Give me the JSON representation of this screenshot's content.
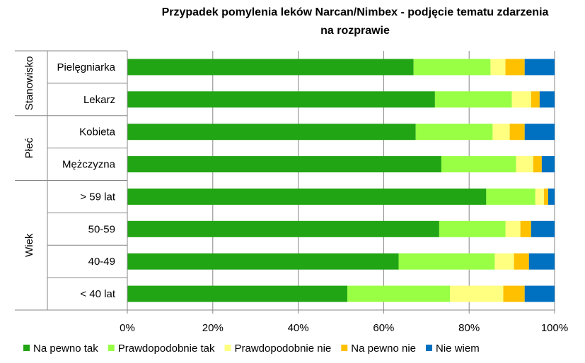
{
  "chart_data": {
    "type": "bar",
    "orientation": "horizontal",
    "stacked": "percent",
    "title_lines": [
      "Przypadek pomylenia leków  Narcan/Nimbex - podjęcie tematu  zdarzenia",
      "na rozprawie"
    ],
    "groups": [
      {
        "name": "Stanowisko",
        "categories": [
          "Pielęgniarka",
          "Lekarz"
        ]
      },
      {
        "name": "Płeć",
        "categories": [
          "Kobieta",
          "Mężczyzna"
        ]
      },
      {
        "name": "Wiek",
        "categories": [
          "> 59 lat",
          "50-59",
          "40-49",
          "< 40 lat"
        ]
      }
    ],
    "categories": [
      "Pielęgniarka",
      "Lekarz",
      "Kobieta",
      "Mężczyzna",
      "> 59 lat",
      "50-59",
      "40-49",
      "< 40 lat"
    ],
    "series": [
      {
        "name": "Na pewno tak",
        "color": "#22a514",
        "values": [
          67,
          72,
          67.5,
          73.5,
          84,
          73,
          63.5,
          51.5
        ]
      },
      {
        "name": "Prawdopodobnie tak",
        "color": "#99ff44",
        "values": [
          18,
          18,
          18,
          17.5,
          11.5,
          15.5,
          22.5,
          24
        ]
      },
      {
        "name": "Prawdopodobnie nie",
        "color": "#ffff80",
        "values": [
          3.5,
          4.5,
          4,
          4,
          2,
          3.5,
          4.5,
          12.5
        ]
      },
      {
        "name": "Na pewno nie",
        "color": "#ffc000",
        "values": [
          4.5,
          2,
          3.5,
          2,
          1,
          2.5,
          3.5,
          5
        ]
      },
      {
        "name": "Nie wiem",
        "color": "#0070c0",
        "values": [
          7,
          3.5,
          7,
          3,
          1.5,
          5.5,
          6,
          7
        ]
      }
    ],
    "xaxis": {
      "ticks": [
        "0%",
        "20%",
        "40%",
        "60%",
        "80%",
        "100%"
      ],
      "range": [
        0,
        100
      ]
    },
    "grid": true,
    "legend": "bottom"
  }
}
